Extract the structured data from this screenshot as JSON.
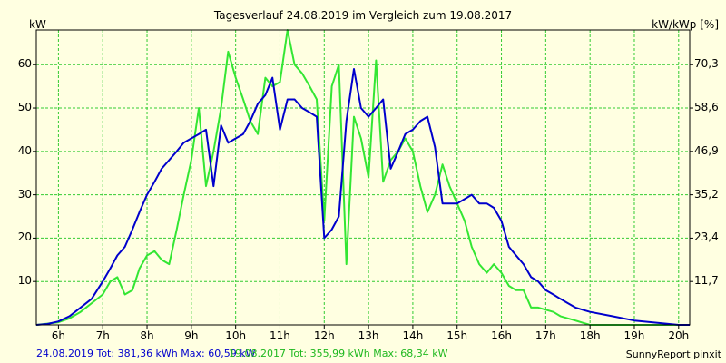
{
  "chart_data": {
    "type": "line",
    "title": "Tagesverlauf 24.08.2019 im Vergleich zum 19.08.2017",
    "ylabel_left": "kW",
    "ylabel_right": "kW/kWp [%]",
    "ylim": [
      0,
      68
    ],
    "y_ticks_left": [
      "10",
      "20",
      "30",
      "40",
      "50",
      "60"
    ],
    "y_ticks_right": [
      "11,7",
      "23,4",
      "35,2",
      "46,9",
      "58,6",
      "70,3"
    ],
    "xlim": [
      5.5,
      20.25
    ],
    "x_ticks": [
      "6h",
      "7h",
      "8h",
      "9h",
      "10h",
      "11h",
      "12h",
      "13h",
      "14h",
      "15h",
      "16h",
      "17h",
      "18h",
      "19h",
      "20h"
    ],
    "grid": true,
    "colors": {
      "background": "#ffffe1",
      "grid": "#33cc33",
      "axis": "#000000"
    },
    "series": [
      {
        "name": "24.08.2019",
        "color": "#0000cc",
        "x": [
          5.5,
          5.75,
          6.0,
          6.25,
          6.5,
          6.75,
          7.0,
          7.17,
          7.33,
          7.5,
          7.67,
          7.83,
          8.0,
          8.17,
          8.33,
          8.5,
          8.67,
          8.83,
          9.0,
          9.17,
          9.33,
          9.5,
          9.67,
          9.83,
          10.0,
          10.17,
          10.33,
          10.5,
          10.67,
          10.83,
          11.0,
          11.17,
          11.33,
          11.5,
          11.67,
          11.83,
          12.0,
          12.17,
          12.33,
          12.5,
          12.67,
          12.83,
          13.0,
          13.17,
          13.33,
          13.5,
          13.67,
          13.83,
          14.0,
          14.17,
          14.33,
          14.5,
          14.67,
          14.83,
          15.0,
          15.17,
          15.33,
          15.5,
          15.67,
          15.83,
          16.0,
          16.17,
          16.33,
          16.5,
          16.67,
          16.83,
          17.0,
          17.17,
          17.33,
          17.5,
          17.67,
          17.83,
          18.0,
          18.5,
          19.0,
          19.5,
          20.0,
          20.25
        ],
        "values": [
          0,
          0.2,
          0.8,
          2,
          4,
          6,
          10,
          13,
          16,
          18,
          22,
          26,
          30,
          33,
          36,
          38,
          40,
          42,
          43,
          44,
          45,
          32,
          46,
          42,
          43,
          44,
          47,
          51,
          53,
          57,
          45,
          52,
          52,
          50,
          49,
          48,
          20,
          22,
          25,
          47,
          59,
          50,
          48,
          50,
          52,
          36,
          40,
          44,
          45,
          47,
          48,
          41,
          28,
          28,
          28,
          29,
          30,
          28,
          28,
          27,
          24,
          18,
          16,
          14,
          11,
          10,
          8,
          7,
          6,
          5,
          4,
          3.5,
          3,
          2,
          1,
          0.5,
          0,
          0
        ]
      },
      {
        "name": "19.08.2017",
        "color": "#33e633",
        "x": [
          5.5,
          5.75,
          6.0,
          6.25,
          6.5,
          6.75,
          7.0,
          7.17,
          7.33,
          7.5,
          7.67,
          7.83,
          8.0,
          8.17,
          8.33,
          8.5,
          8.67,
          8.83,
          9.0,
          9.17,
          9.33,
          9.5,
          9.67,
          9.83,
          10.0,
          10.17,
          10.33,
          10.5,
          10.67,
          10.83,
          11.0,
          11.17,
          11.33,
          11.5,
          11.67,
          11.83,
          12.0,
          12.17,
          12.33,
          12.5,
          12.67,
          12.83,
          13.0,
          13.17,
          13.33,
          13.5,
          13.67,
          13.83,
          14.0,
          14.17,
          14.33,
          14.5,
          14.67,
          14.83,
          15.0,
          15.17,
          15.33,
          15.5,
          15.67,
          15.83,
          16.0,
          16.17,
          16.33,
          16.5,
          16.67,
          16.83,
          17.0,
          17.17,
          17.33,
          17.5,
          17.67,
          17.83,
          18.0,
          18.5,
          19.0,
          19.5,
          20.0,
          20.25
        ],
        "values": [
          0,
          0.3,
          0.6,
          1.5,
          3,
          5,
          7,
          10,
          11,
          7,
          8,
          13,
          16,
          17,
          15,
          14,
          22,
          30,
          38,
          50,
          32,
          40,
          50,
          63,
          57,
          52,
          47,
          44,
          57,
          55,
          56,
          68,
          60,
          58,
          55,
          52,
          24,
          55,
          60,
          14,
          48,
          43,
          34,
          61,
          33,
          38,
          40,
          43,
          40,
          32,
          26,
          30,
          37,
          32,
          28,
          24,
          18,
          14,
          12,
          14,
          12,
          9,
          8,
          8,
          4,
          4,
          3.5,
          3,
          2,
          1.5,
          1,
          0.5,
          0,
          0,
          0,
          0,
          0,
          0
        ]
      }
    ]
  },
  "footer": {
    "legend_1_text": "24.08.2019 Tot: 381,36 kWh Max: 60,59 kW",
    "legend_2_text": "19.08.2017 Tot: 355,99 kWh Max: 68,34 kW",
    "credit": "SunnyReport pinxit"
  }
}
